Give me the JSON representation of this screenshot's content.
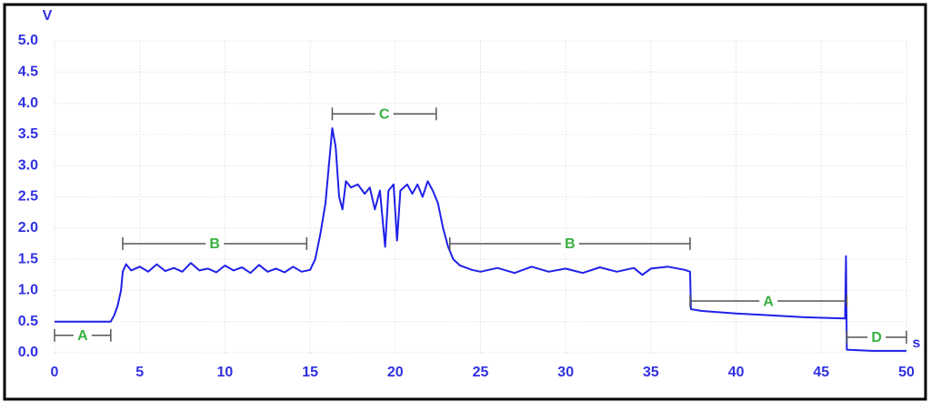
{
  "chart_data": {
    "type": "line",
    "y_label": "V",
    "x_label": "s",
    "color": "#2020e8",
    "grid": true,
    "xlim": [
      0,
      50
    ],
    "ylim": [
      0,
      5
    ],
    "xticks": [
      0,
      5,
      10,
      15,
      20,
      25,
      30,
      35,
      40,
      45,
      50
    ],
    "yticks": [
      {
        "value": 0,
        "label": "0.0"
      },
      {
        "value": 0.5,
        "label": "0.5"
      },
      {
        "value": 1,
        "label": "1.0"
      },
      {
        "value": 1.5,
        "label": "1.5"
      },
      {
        "value": 2,
        "label": "2.0"
      },
      {
        "value": 2.5,
        "label": "2.5"
      },
      {
        "value": 3,
        "label": "3.0"
      },
      {
        "value": 3.5,
        "label": "3.5"
      },
      {
        "value": 4,
        "label": "4.0"
      },
      {
        "value": 4.5,
        "label": "4.5"
      },
      {
        "value": 5,
        "label": "5.0"
      }
    ],
    "x": [
      0,
      3.3,
      3.5,
      3.7,
      3.9,
      4.0,
      4.2,
      4.5,
      5,
      5.5,
      6,
      6.5,
      7,
      7.5,
      8,
      8.5,
      9,
      9.5,
      10,
      10.5,
      11,
      11.5,
      12,
      12.5,
      13,
      13.5,
      14,
      14.5,
      15,
      15.3,
      15.6,
      15.9,
      16.1,
      16.3,
      16.5,
      16.7,
      16.9,
      17.1,
      17.4,
      17.8,
      18.2,
      18.5,
      18.8,
      19.1,
      19.4,
      19.6,
      19.9,
      20.1,
      20.3,
      20.7,
      21.0,
      21.3,
      21.6,
      21.9,
      22.2,
      22.5,
      22.8,
      23.1,
      23.4,
      23.8,
      24.5,
      25,
      26,
      27,
      28,
      29,
      30,
      31,
      32,
      33,
      34,
      34.5,
      35,
      36,
      37,
      37.3,
      37.35,
      38,
      40,
      42,
      44,
      46.4,
      46.45,
      46.5,
      48,
      50
    ],
    "values": [
      0.5,
      0.5,
      0.6,
      0.75,
      1.0,
      1.3,
      1.42,
      1.32,
      1.38,
      1.3,
      1.42,
      1.31,
      1.36,
      1.3,
      1.44,
      1.32,
      1.35,
      1.29,
      1.4,
      1.32,
      1.37,
      1.28,
      1.41,
      1.3,
      1.35,
      1.29,
      1.38,
      1.3,
      1.33,
      1.5,
      1.9,
      2.4,
      3.0,
      3.6,
      3.3,
      2.5,
      2.3,
      2.75,
      2.65,
      2.7,
      2.55,
      2.65,
      2.3,
      2.6,
      1.7,
      2.6,
      2.7,
      1.8,
      2.6,
      2.7,
      2.55,
      2.7,
      2.5,
      2.75,
      2.6,
      2.4,
      2.0,
      1.7,
      1.5,
      1.4,
      1.33,
      1.3,
      1.36,
      1.28,
      1.38,
      1.3,
      1.35,
      1.28,
      1.37,
      1.3,
      1.36,
      1.25,
      1.35,
      1.38,
      1.33,
      1.3,
      0.7,
      0.67,
      0.63,
      0.6,
      0.57,
      0.55,
      1.55,
      0.05,
      0.03,
      0.03
    ],
    "annotations": [
      {
        "label": "A",
        "x": [
          0,
          3.3
        ],
        "y": 0.28
      },
      {
        "label": "B",
        "x": [
          4,
          14.8
        ],
        "y": 1.75
      },
      {
        "label": "C",
        "x": [
          16.3,
          22.4
        ],
        "y": 3.83
      },
      {
        "label": "B",
        "x": [
          23.2,
          37.3
        ],
        "y": 1.75
      },
      {
        "label": "A",
        "x": [
          37.3,
          46.5
        ],
        "y": 0.83
      },
      {
        "label": "D",
        "x": [
          46.5,
          50
        ],
        "y": 0.25
      }
    ]
  }
}
